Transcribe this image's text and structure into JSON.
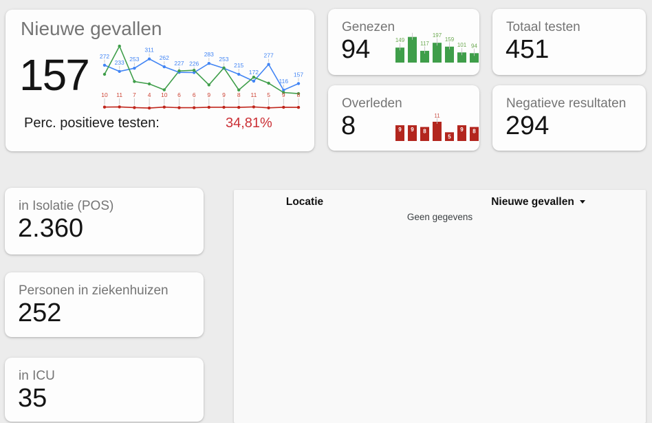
{
  "cards": {
    "nieuwe_gevallen": {
      "title": "Nieuwe gevallen",
      "value": "157",
      "perc_label": "Perc. positieve testen:",
      "perc_value": "34,81%"
    },
    "genezen": {
      "title": "Genezen",
      "value": "94"
    },
    "totaal_testen": {
      "title": "Totaal testen",
      "value": "451"
    },
    "overleden": {
      "title": "Overleden",
      "value": "8"
    },
    "negatieve_resultaten": {
      "title": "Negatieve resultaten",
      "value": "294"
    },
    "in_isolatie": {
      "title": "in Isolatie (POS)",
      "value": "2.360"
    },
    "ziekenhuizen": {
      "title": "Personen in ziekenhuizen",
      "value": "252"
    },
    "icu": {
      "title": "in ICU",
      "value": "35"
    }
  },
  "table": {
    "columns": [
      {
        "label": "Locatie",
        "has_sort_icon": false
      },
      {
        "label": "Nieuwe gevallen",
        "has_sort_icon": true,
        "sort_direction": "desc"
      }
    ],
    "empty_text": "Geen gegevens",
    "rows": []
  },
  "colors": {
    "page_bg": "#ececec",
    "card_bg": "#fdfdfd",
    "title_gray": "#757575",
    "blue": "#4285f4",
    "green": "#3f9e4a",
    "green_label": "#6aa84f",
    "red_line": "#c0261c",
    "red_label": "#cc4334",
    "red_bar": "#b3261e",
    "accent_red": "#cb3036",
    "leader_gray": "#c4c4c4"
  },
  "chart_data": [
    {
      "id": "trend",
      "type": "line",
      "x": [
        1,
        2,
        3,
        4,
        5,
        6,
        7,
        8,
        9,
        10,
        11,
        12,
        13,
        14
      ],
      "ylim": [
        0,
        400
      ],
      "grid": false,
      "legend": "none",
      "series": [
        {
          "name": "Nieuwe gevallen",
          "color": "#4285f4",
          "label_color": "#4285f4",
          "show_labels": true,
          "labels_fixed_y": false,
          "values": [
            272,
            233,
            253,
            311,
            262,
            227,
            226,
            283,
            253,
            215,
            172,
            277,
            116,
            157
          ]
        },
        {
          "name": "Genezen (unlabeled, estimated)",
          "color": "#3f9e4a",
          "label_color": "#3f9e4a",
          "show_labels": false,
          "labels_fixed_y": false,
          "values": [
            215,
            391,
            170,
            155,
            118,
            236,
            240,
            149,
            255,
            117,
            197,
            159,
            101,
            94
          ]
        },
        {
          "name": "Overleden",
          "color": "#c0261c",
          "label_color": "#cc4334",
          "show_labels": true,
          "labels_fixed_y": true,
          "values": [
            10,
            11,
            7,
            4,
            10,
            6,
            6,
            9,
            9,
            8,
            11,
            5,
            9,
            8
          ]
        }
      ]
    },
    {
      "id": "genezen_bars",
      "type": "bar",
      "values": [
        149,
        255,
        117,
        197,
        159,
        101,
        94
      ],
      "second_bar_label_occluded": true,
      "ymax": 260,
      "hmax": 38,
      "bar_color": "#3f9e4a",
      "label_color": "#6aa84f",
      "labels_behind": true
    },
    {
      "id": "overleden_bars",
      "type": "bar",
      "values": [
        9,
        9,
        8,
        11,
        5,
        9,
        8
      ],
      "ymax": 11,
      "hmax": 28,
      "bar_color": "#b3261e",
      "label_color": "#c9564c",
      "inside_label_color": "#ffffff",
      "labels_behind": false,
      "label_inside": [
        true,
        true,
        true,
        false,
        true,
        true,
        true
      ]
    }
  ]
}
